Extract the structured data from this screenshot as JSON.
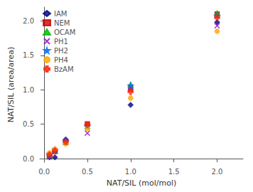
{
  "chart_data": {
    "type": "scatter",
    "title": "",
    "xlabel": "NAT/SIL (mol/mol)",
    "ylabel": "NAT/SIL (area/area)",
    "xlim": [
      -0.05,
      2.3
    ],
    "ylim": [
      -0.05,
      2.2
    ],
    "xticks": [
      {
        "value": 0,
        "label": "0.0"
      },
      0.5,
      {
        "value": 1,
        "label": "1.0"
      },
      1.5,
      {
        "value": 2,
        "label": "2.0"
      }
    ],
    "yticks": [
      {
        "value": 0,
        "label": "0.0"
      },
      0.5,
      {
        "value": 1,
        "label": "1.0"
      },
      1.5,
      {
        "value": 2,
        "label": "2.0"
      }
    ],
    "grid": false,
    "legend": "upper left",
    "series": [
      {
        "name": "IAM",
        "color": "#00007F",
        "marker": "diamond",
        "x": [
          0.0625,
          0.125,
          0.25,
          1.0,
          2.0
        ],
        "values": [
          0.02,
          0.02,
          0.28,
          0.78,
          1.98
        ]
      },
      {
        "name": "NEM",
        "color": "#CC0000",
        "marker": "square",
        "x": [
          0.0625,
          0.125,
          0.25,
          0.5,
          1.0,
          2.0
        ],
        "values": [
          0.055,
          0.105,
          0.24,
          0.505,
          1.01,
          2.1
        ]
      },
      {
        "name": "OCAM",
        "color": "#00BB00",
        "marker": "triangle",
        "x": [
          0.0625,
          0.125,
          0.25,
          0.5,
          1.0,
          2.0
        ],
        "values": [
          0.045,
          0.115,
          0.245,
          0.475,
          1.08,
          2.115
        ]
      },
      {
        "name": "PH1",
        "color": "#8B00CC",
        "marker": "x",
        "x": [
          0.0625,
          0.125,
          0.25,
          0.5,
          1.0,
          2.0
        ],
        "values": [
          0.025,
          0.115,
          0.24,
          0.37,
          1.04,
          1.93
        ]
      },
      {
        "name": "PH2",
        "color": "#0070FF",
        "marker": "star",
        "x": [
          0.0625,
          0.125,
          0.25,
          0.5,
          1.0,
          2.0
        ],
        "values": [
          0.065,
          0.13,
          0.255,
          0.47,
          1.06,
          2.075
        ]
      },
      {
        "name": "PH4",
        "color": "#FFA500",
        "marker": "circle",
        "x": [
          0.0625,
          0.125,
          0.25,
          0.5,
          1.0,
          2.0
        ],
        "values": [
          0.085,
          0.14,
          0.215,
          0.435,
          0.88,
          1.85
        ]
      },
      {
        "name": "BzAM",
        "color": "#FF2200",
        "marker": "plus",
        "x": [
          0.0625,
          0.125,
          0.25,
          0.5,
          1.0,
          2.0
        ],
        "values": [
          0.055,
          0.115,
          0.245,
          0.495,
          0.97,
          2.05
        ]
      }
    ]
  }
}
